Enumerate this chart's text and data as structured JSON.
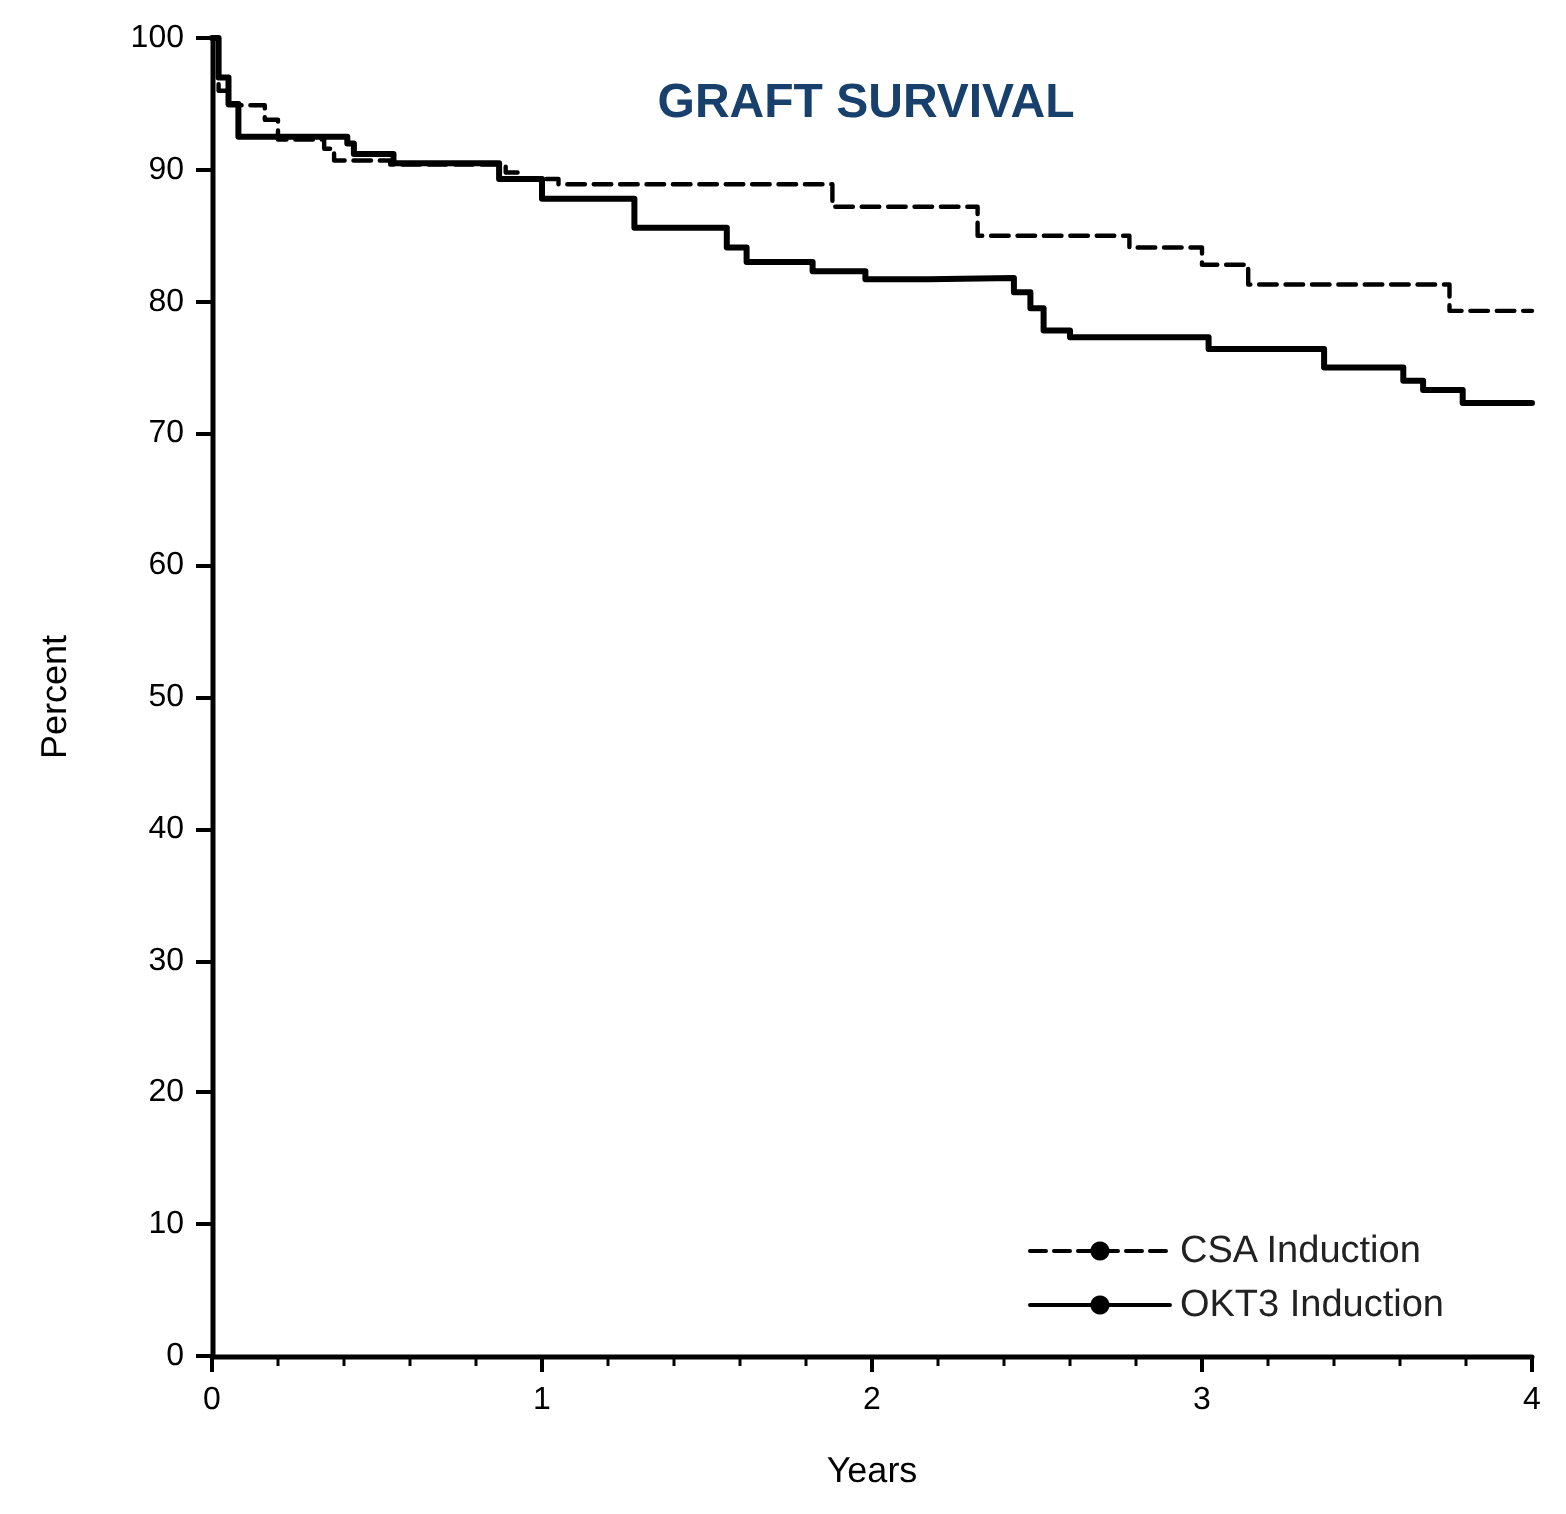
{
  "chart_data": {
    "type": "step",
    "title": "GRAFT SURVIVAL",
    "xlabel": "Years",
    "ylabel": "Percent",
    "xlim": [
      0,
      4
    ],
    "xticks": [
      0,
      1,
      2,
      3,
      4
    ],
    "ylim": [
      0,
      100
    ],
    "yticks": [
      0,
      10,
      20,
      30,
      40,
      50,
      60,
      70,
      80,
      90,
      100
    ],
    "grid": false,
    "legend": "bottom right",
    "marker": "none",
    "series": [
      {
        "name": "CSA Induction",
        "color": "#000000",
        "line_style": "dashed",
        "x": [
          0,
          0.02,
          0.05,
          0.16,
          0.2,
          0.34,
          0.37,
          0.54,
          0.89,
          0.93,
          1.05,
          1.88,
          2.32,
          2.78,
          3.0,
          3.14,
          3.75,
          4.0
        ],
        "values": [
          100,
          96,
          94.9,
          93.8,
          92.3,
          91.6,
          90.7,
          90.4,
          89.8,
          89.3,
          88.9,
          87.2,
          85.0,
          84.1,
          82.8,
          81.3,
          79.3,
          79.3
        ]
      },
      {
        "name": "OKT3 Induction",
        "color": "#000000",
        "line_style": "solid",
        "x": [
          0,
          0.02,
          0.05,
          0.08,
          0.41,
          0.43,
          0.55,
          0.87,
          1.0,
          1.28,
          1.56,
          1.62,
          1.82,
          1.98,
          2.17,
          2.43,
          2.48,
          2.52,
          2.6,
          3.02,
          3.37,
          3.61,
          3.67,
          3.79,
          4.0
        ],
        "values": [
          100,
          97,
          95,
          92.5,
          92.0,
          91.2,
          90.5,
          89.3,
          87.8,
          85.6,
          84.1,
          83.0,
          82.3,
          81.7,
          81.8,
          80.7,
          79.5,
          77.8,
          77.3,
          76.4,
          75.0,
          74.0,
          73.3,
          72.3,
          72.3
        ]
      }
    ]
  }
}
